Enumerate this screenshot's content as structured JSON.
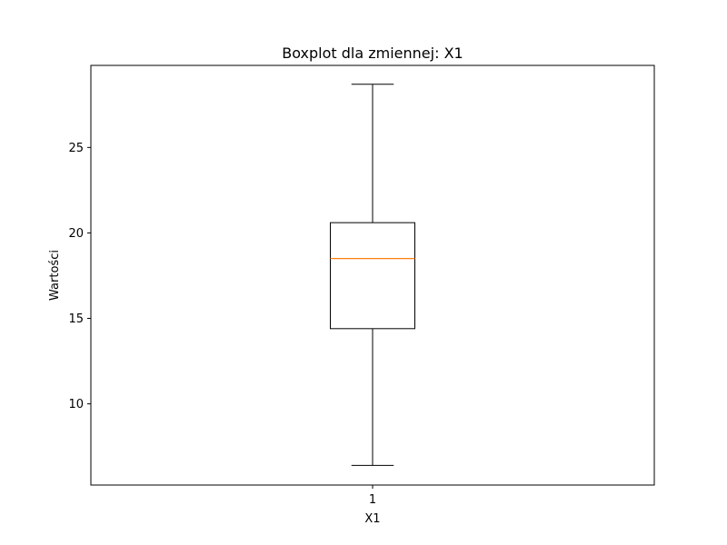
{
  "chart_data": {
    "type": "box",
    "title": "Boxplot dla zmiennej: X1",
    "xlabel": "X1",
    "ylabel": "Wartości",
    "categories": [
      "1"
    ],
    "ylim": [
      5.25,
      29.8
    ],
    "yticks": [
      10,
      15,
      20,
      25
    ],
    "grid": false,
    "boxes": [
      {
        "category": "1",
        "whisker_low": 6.4,
        "q1": 14.4,
        "median": 18.5,
        "q3": 20.6,
        "whisker_high": 28.7
      }
    ],
    "colors": {
      "box": "#000000",
      "median": "#ff7f0e"
    }
  }
}
